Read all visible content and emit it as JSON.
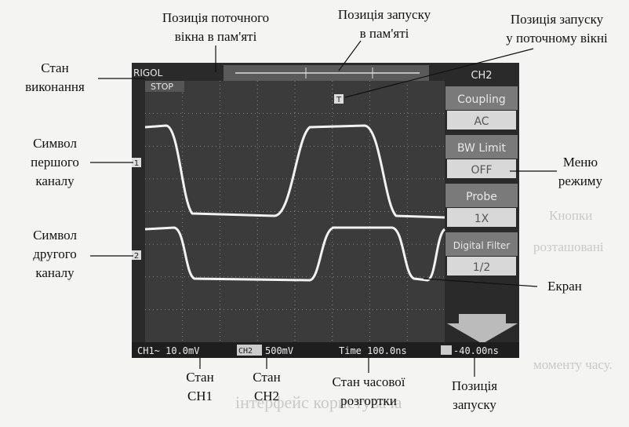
{
  "background_text": [
    "Кнопки",
    "розташовані",
    "моменту часу.",
    "інтерфейс користувача"
  ],
  "screen": {
    "brand": "RIGOL",
    "run_state": "STOP",
    "menu_title": "CH2",
    "menu_items": [
      "Coupling",
      "AC",
      "BW Limit",
      "OFF",
      "Probe",
      "1X",
      "Digital Filter",
      "1/2"
    ],
    "status": {
      "ch1": "CH1~ 10.0mV",
      "ch2": "500mV",
      "ch2_label": "CH2",
      "time": "Time 100.0ns",
      "trigger": "-40.00ns"
    },
    "ch1_marker": "1",
    "ch2_marker": "2",
    "trigger_marker": "T"
  },
  "annotations": [
    {
      "lines": [
        "Позиція поточного",
        "вікна в пам'яті"
      ]
    },
    {
      "lines": [
        "Позиція запуску",
        "в пам'яті"
      ]
    },
    {
      "lines": [
        "Позиція запуску",
        "у поточному вікні"
      ]
    },
    {
      "lines": [
        "Стан",
        "виконання"
      ]
    },
    {
      "lines": [
        "Символ",
        "першого",
        "каналу"
      ]
    },
    {
      "lines": [
        "Символ",
        "другого",
        "каналу"
      ]
    },
    {
      "lines": [
        "Меню",
        "режиму"
      ]
    },
    {
      "lines": [
        "Екран"
      ]
    },
    {
      "lines": [
        "Стан",
        "CH1"
      ]
    },
    {
      "lines": [
        "Стан",
        "CH2"
      ]
    },
    {
      "lines": [
        "Стан часової",
        "розгортки"
      ]
    },
    {
      "lines": [
        "Позиція",
        "запуску"
      ]
    }
  ]
}
